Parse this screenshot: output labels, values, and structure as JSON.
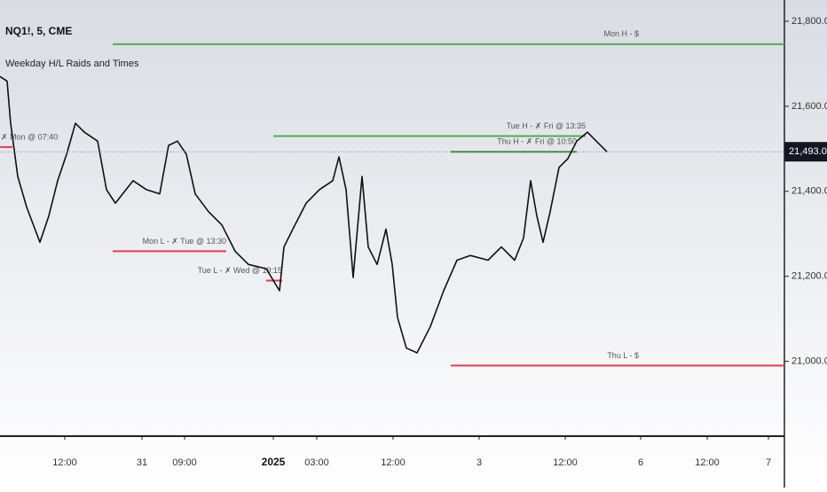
{
  "chart_data": {
    "type": "line",
    "title": "NQ1!, 5, CME",
    "subtitle": "Weekday H/L Raids and Times",
    "color": "#111111",
    "xlim": [
      0,
      221
    ],
    "ylim": [
      20824,
      21850
    ],
    "xticks": [
      {
        "value": 18.25,
        "label": "12:00"
      },
      {
        "value": 40,
        "label": "31"
      },
      {
        "value": 52,
        "label": "09:00"
      },
      {
        "value": 77,
        "label": "2025"
      },
      {
        "value": 89.25,
        "label": "03:00"
      },
      {
        "value": 110.75,
        "label": "12:00"
      },
      {
        "value": 135,
        "label": "3"
      },
      {
        "value": 159.25,
        "label": "12:00"
      },
      {
        "value": 180.5,
        "label": "6"
      },
      {
        "value": 199.25,
        "label": "12:00"
      },
      {
        "value": 216.5,
        "label": "7"
      }
    ],
    "yticks": [
      {
        "value": 21000,
        "label": "21,000.00"
      },
      {
        "value": 21200,
        "label": "21,200.00"
      },
      {
        "value": 21400,
        "label": "21,400.00"
      },
      {
        "value": 21600,
        "label": "21,600.00"
      },
      {
        "value": 21800,
        "label": "21,800.00"
      }
    ],
    "x": [
      0,
      2,
      3,
      5,
      7.5,
      11.25,
      13.75,
      16.25,
      18.75,
      21.25,
      23.75,
      27.5,
      30,
      32.5,
      37.5,
      41.25,
      45,
      47.5,
      50,
      52.5,
      55,
      58.75,
      62.5,
      66.25,
      70,
      75,
      78.75,
      80,
      82.5,
      86.25,
      90,
      93.75,
      95.5,
      97.5,
      99.5,
      102,
      103.75,
      106.25,
      108.75,
      110.5,
      112,
      114.5,
      117.5,
      121.25,
      125,
      128.75,
      132.5,
      137.5,
      141.25,
      145,
      147.5,
      149.5,
      151.25,
      153,
      155,
      157.5,
      160,
      162.5,
      165.5,
      168,
      171
    ],
    "values": [
      21670,
      21659,
      21560,
      21435,
      21363,
      21280,
      21342,
      21425,
      21487,
      21560,
      21539,
      21518,
      21404,
      21372,
      21425,
      21404,
      21394,
      21508,
      21518,
      21487,
      21394,
      21352,
      21321,
      21259,
      21228,
      21218,
      21166,
      21269,
      21311,
      21372,
      21404,
      21425,
      21481,
      21404,
      21197,
      21435,
      21269,
      21228,
      21311,
      21228,
      21103,
      21031,
      21020,
      21082,
      21166,
      21238,
      21249,
      21238,
      21269,
      21238,
      21290,
      21425,
      21342,
      21280,
      21352,
      21456,
      21477,
      21518,
      21539,
      21518,
      21493
    ],
    "last_price": {
      "value": 21493,
      "label": "21,493.00"
    },
    "levels": [
      {
        "label": "Mon H - $",
        "value": 21746,
        "x": [
          31.75,
          221
        ],
        "color": "#4caf50"
      },
      {
        "label": "Tue H - ✗ Fri @ 13:35",
        "value": 21530,
        "x": [
          77,
          165
        ],
        "color": "#4caf50"
      },
      {
        "label": "Thu H - ✗ Fri @ 10:50",
        "value": 21493,
        "x": [
          127,
          162.5
        ],
        "color": "#388e3c"
      },
      {
        "label": "✗ Mon @ 07:40",
        "value": 21504,
        "x": [
          0,
          3.5
        ],
        "color": "#e53950"
      },
      {
        "label": "Mon L - ✗ Tue @ 13:30",
        "value": 21259,
        "x": [
          31.75,
          63.75
        ],
        "color": "#e53950"
      },
      {
        "label": "Tue L - ✗ Wed @ 19:15",
        "value": 21190,
        "x": [
          75,
          79.5
        ],
        "color": "#e53950"
      },
      {
        "label": "Thu L - $",
        "value": 20990,
        "x": [
          127,
          221
        ],
        "color": "#e53950"
      }
    ]
  }
}
